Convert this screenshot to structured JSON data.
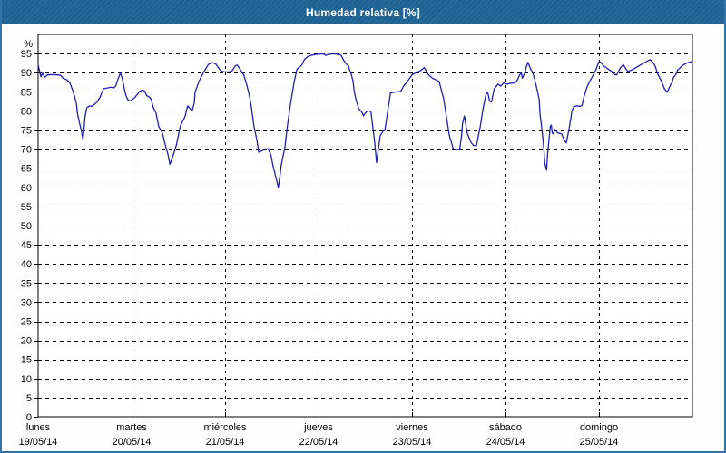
{
  "window": {
    "title": "Humedad relativa [%]"
  },
  "colors": {
    "titlebar_bg": "#1e6496",
    "titlebar_text": "#ffffff",
    "window_border": "#3474a8",
    "plot_background": "#ffffff",
    "grid_axis": "#000000",
    "line": "#1f1fb0"
  },
  "chart_data": {
    "type": "line",
    "title": "Humedad relativa [%]",
    "ylabel": "%",
    "ylim": [
      0,
      100
    ],
    "yticks": [
      0,
      5,
      10,
      15,
      20,
      25,
      30,
      35,
      40,
      45,
      50,
      55,
      60,
      65,
      70,
      75,
      80,
      85,
      90,
      95
    ],
    "grid": "dashed",
    "legend_position": "none",
    "x_categories": [
      {
        "day": "lunes",
        "date": "19/05/14"
      },
      {
        "day": "martes",
        "date": "20/05/14"
      },
      {
        "day": "miércoles",
        "date": "21/05/14"
      },
      {
        "day": "jueves",
        "date": "22/05/14"
      },
      {
        "day": "viernes",
        "date": "23/05/14"
      },
      {
        "day": "sábado",
        "date": "24/05/14"
      },
      {
        "day": "domingo",
        "date": "25/05/14"
      }
    ],
    "x_unit": "days_from_start",
    "series": [
      {
        "name": "Humedad relativa",
        "color": "#1f1fb0",
        "points": [
          [
            0.0,
            92.0
          ],
          [
            0.03,
            88.9
          ],
          [
            0.05,
            89.9
          ],
          [
            0.07,
            88.8
          ],
          [
            0.1,
            89.4
          ],
          [
            0.16,
            89.5
          ],
          [
            0.21,
            89.4
          ],
          [
            0.24,
            89.3
          ],
          [
            0.27,
            88.5
          ],
          [
            0.31,
            88.1
          ],
          [
            0.34,
            87.3
          ],
          [
            0.37,
            85.4
          ],
          [
            0.39,
            83.8
          ],
          [
            0.41,
            81.8
          ],
          [
            0.42,
            79.4
          ],
          [
            0.44,
            77.1
          ],
          [
            0.46,
            75.1
          ],
          [
            0.48,
            72.6
          ],
          [
            0.49,
            75.0
          ],
          [
            0.5,
            78.0
          ],
          [
            0.51,
            79.5
          ],
          [
            0.52,
            80.8
          ],
          [
            0.55,
            81.3
          ],
          [
            0.58,
            81.2
          ],
          [
            0.61,
            81.9
          ],
          [
            0.63,
            82.3
          ],
          [
            0.66,
            83.5
          ],
          [
            0.7,
            85.8
          ],
          [
            0.74,
            86.0
          ],
          [
            0.78,
            86.2
          ],
          [
            0.81,
            86.0
          ],
          [
            0.83,
            86.5
          ],
          [
            0.85,
            88.0
          ],
          [
            0.88,
            89.9
          ],
          [
            0.9,
            88.5
          ],
          [
            0.92,
            86.0
          ],
          [
            0.94,
            84.0
          ],
          [
            0.96,
            82.9
          ],
          [
            0.98,
            82.6
          ],
          [
            1.0,
            82.8
          ],
          [
            1.03,
            83.4
          ],
          [
            1.06,
            84.3
          ],
          [
            1.09,
            85.2
          ],
          [
            1.12,
            85.4
          ],
          [
            1.14,
            85.2
          ],
          [
            1.16,
            84.0
          ],
          [
            1.19,
            83.6
          ],
          [
            1.21,
            83.0
          ],
          [
            1.23,
            81.0
          ],
          [
            1.26,
            79.5
          ],
          [
            1.29,
            75.9
          ],
          [
            1.33,
            74.2
          ],
          [
            1.36,
            71.1
          ],
          [
            1.39,
            68.5
          ],
          [
            1.41,
            66.0
          ],
          [
            1.44,
            68.0
          ],
          [
            1.48,
            71.1
          ],
          [
            1.5,
            73.5
          ],
          [
            1.52,
            75.9
          ],
          [
            1.55,
            77.5
          ],
          [
            1.57,
            78.4
          ],
          [
            1.6,
            81.3
          ],
          [
            1.63,
            80.5
          ],
          [
            1.65,
            80.2
          ],
          [
            1.67,
            82.0
          ],
          [
            1.68,
            84.9
          ],
          [
            1.72,
            87.7
          ],
          [
            1.77,
            90.1
          ],
          [
            1.82,
            92.1
          ],
          [
            1.85,
            92.5
          ],
          [
            1.87,
            92.6
          ],
          [
            1.9,
            92.3
          ],
          [
            1.94,
            90.9
          ],
          [
            1.97,
            90.3
          ],
          [
            2.0,
            90.2
          ],
          [
            2.04,
            90.2
          ],
          [
            2.07,
            90.3
          ],
          [
            2.11,
            91.8
          ],
          [
            2.13,
            92.0
          ],
          [
            2.15,
            91.3
          ],
          [
            2.2,
            89.4
          ],
          [
            2.23,
            87.0
          ],
          [
            2.26,
            84.0
          ],
          [
            2.28,
            81.3
          ],
          [
            2.31,
            75.9
          ],
          [
            2.34,
            72.5
          ],
          [
            2.36,
            69.2
          ],
          [
            2.39,
            69.5
          ],
          [
            2.43,
            70.0
          ],
          [
            2.46,
            70.1
          ],
          [
            2.49,
            68.5
          ],
          [
            2.51,
            66.0
          ],
          [
            2.54,
            63.0
          ],
          [
            2.57,
            60.0
          ],
          [
            2.59,
            63.5
          ],
          [
            2.6,
            65.7
          ],
          [
            2.64,
            70.4
          ],
          [
            2.67,
            76.6
          ],
          [
            2.7,
            81.8
          ],
          [
            2.74,
            87.7
          ],
          [
            2.77,
            90.9
          ],
          [
            2.82,
            92.0
          ],
          [
            2.85,
            93.5
          ],
          [
            2.89,
            94.3
          ],
          [
            2.93,
            94.6
          ],
          [
            2.99,
            94.8
          ],
          [
            3.05,
            94.9
          ],
          [
            3.08,
            94.5
          ],
          [
            3.11,
            94.8
          ],
          [
            3.16,
            94.9
          ],
          [
            3.2,
            94.8
          ],
          [
            3.24,
            94.6
          ],
          [
            3.27,
            93.2
          ],
          [
            3.3,
            92.2
          ],
          [
            3.32,
            91.8
          ],
          [
            3.33,
            90.9
          ],
          [
            3.35,
            89.5
          ],
          [
            3.37,
            87.7
          ],
          [
            3.38,
            85.4
          ],
          [
            3.4,
            83.0
          ],
          [
            3.43,
            80.6
          ],
          [
            3.47,
            79.4
          ],
          [
            3.48,
            78.7
          ],
          [
            3.5,
            79.4
          ],
          [
            3.52,
            79.9
          ],
          [
            3.54,
            80.0
          ],
          [
            3.56,
            79.8
          ],
          [
            3.58,
            76.0
          ],
          [
            3.6,
            72.0
          ],
          [
            3.62,
            66.5
          ],
          [
            3.64,
            70.0
          ],
          [
            3.66,
            73.5
          ],
          [
            3.69,
            74.7
          ],
          [
            3.71,
            74.9
          ],
          [
            3.74,
            79.9
          ],
          [
            3.77,
            84.7
          ],
          [
            3.81,
            84.9
          ],
          [
            3.85,
            85.0
          ],
          [
            3.88,
            85.1
          ],
          [
            3.91,
            86.5
          ],
          [
            3.95,
            87.7
          ],
          [
            4.0,
            89.4
          ],
          [
            4.05,
            90.1
          ],
          [
            4.09,
            90.5
          ],
          [
            4.13,
            91.3
          ],
          [
            4.16,
            90.2
          ],
          [
            4.17,
            89.6
          ],
          [
            4.22,
            88.5
          ],
          [
            4.25,
            88.2
          ],
          [
            4.29,
            87.7
          ],
          [
            4.34,
            83.0
          ],
          [
            4.37,
            78.2
          ],
          [
            4.4,
            73.5
          ],
          [
            4.44,
            70.2
          ],
          [
            4.47,
            69.8
          ],
          [
            4.51,
            69.9
          ],
          [
            4.53,
            73.5
          ],
          [
            4.54,
            76.6
          ],
          [
            4.56,
            78.7
          ],
          [
            4.59,
            74.2
          ],
          [
            4.63,
            71.8
          ],
          [
            4.66,
            70.9
          ],
          [
            4.69,
            71.0
          ],
          [
            4.73,
            75.9
          ],
          [
            4.76,
            80.6
          ],
          [
            4.79,
            84.2
          ],
          [
            4.81,
            84.9
          ],
          [
            4.83,
            82.6
          ],
          [
            4.85,
            82.3
          ],
          [
            4.88,
            85.8
          ],
          [
            4.92,
            87.0
          ],
          [
            4.95,
            86.5
          ],
          [
            4.98,
            87.3
          ],
          [
            5.02,
            87.0
          ],
          [
            5.05,
            87.2
          ],
          [
            5.1,
            87.3
          ],
          [
            5.13,
            88.2
          ],
          [
            5.15,
            89.4
          ],
          [
            5.17,
            89.9
          ],
          [
            5.18,
            88.5
          ],
          [
            5.21,
            90.1
          ],
          [
            5.22,
            91.3
          ],
          [
            5.24,
            92.7
          ],
          [
            5.27,
            90.9
          ],
          [
            5.29,
            90.1
          ],
          [
            5.31,
            88.5
          ],
          [
            5.34,
            85.4
          ],
          [
            5.36,
            83.0
          ],
          [
            5.37,
            79.0
          ],
          [
            5.39,
            75.2
          ],
          [
            5.41,
            70.4
          ],
          [
            5.42,
            66.4
          ],
          [
            5.44,
            64.5
          ],
          [
            5.45,
            68.7
          ],
          [
            5.48,
            75.9
          ],
          [
            5.49,
            76.3
          ],
          [
            5.5,
            74.2
          ],
          [
            5.51,
            74.0
          ],
          [
            5.53,
            75.2
          ],
          [
            5.56,
            74.2
          ],
          [
            5.6,
            74.0
          ],
          [
            5.63,
            72.3
          ],
          [
            5.65,
            71.6
          ],
          [
            5.68,
            75.2
          ],
          [
            5.7,
            78.2
          ],
          [
            5.71,
            79.9
          ],
          [
            5.73,
            81.1
          ],
          [
            5.76,
            81.3
          ],
          [
            5.8,
            81.2
          ],
          [
            5.82,
            81.5
          ],
          [
            5.84,
            83.7
          ],
          [
            5.87,
            86.1
          ],
          [
            5.9,
            87.7
          ],
          [
            5.94,
            89.4
          ],
          [
            5.97,
            90.9
          ],
          [
            5.99,
            92.3
          ],
          [
            6.0,
            92.9
          ],
          [
            6.02,
            92.7
          ],
          [
            6.05,
            91.8
          ],
          [
            6.1,
            90.9
          ],
          [
            6.15,
            90.1
          ],
          [
            6.17,
            89.5
          ],
          [
            6.19,
            89.4
          ],
          [
            6.23,
            91.3
          ],
          [
            6.26,
            92.1
          ],
          [
            6.29,
            90.9
          ],
          [
            6.31,
            90.3
          ],
          [
            6.36,
            90.8
          ],
          [
            6.43,
            91.8
          ],
          [
            6.48,
            92.5
          ],
          [
            6.53,
            93.2
          ],
          [
            6.55,
            93.4
          ],
          [
            6.58,
            92.6
          ],
          [
            6.6,
            91.8
          ],
          [
            6.63,
            89.6
          ],
          [
            6.67,
            87.7
          ],
          [
            6.7,
            85.8
          ],
          [
            6.73,
            84.9
          ],
          [
            6.77,
            87.0
          ],
          [
            6.78,
            87.3
          ],
          [
            6.8,
            88.9
          ],
          [
            6.82,
            89.4
          ],
          [
            6.84,
            90.6
          ],
          [
            6.89,
            91.8
          ],
          [
            6.94,
            92.5
          ],
          [
            6.99,
            92.9
          ]
        ]
      }
    ]
  }
}
